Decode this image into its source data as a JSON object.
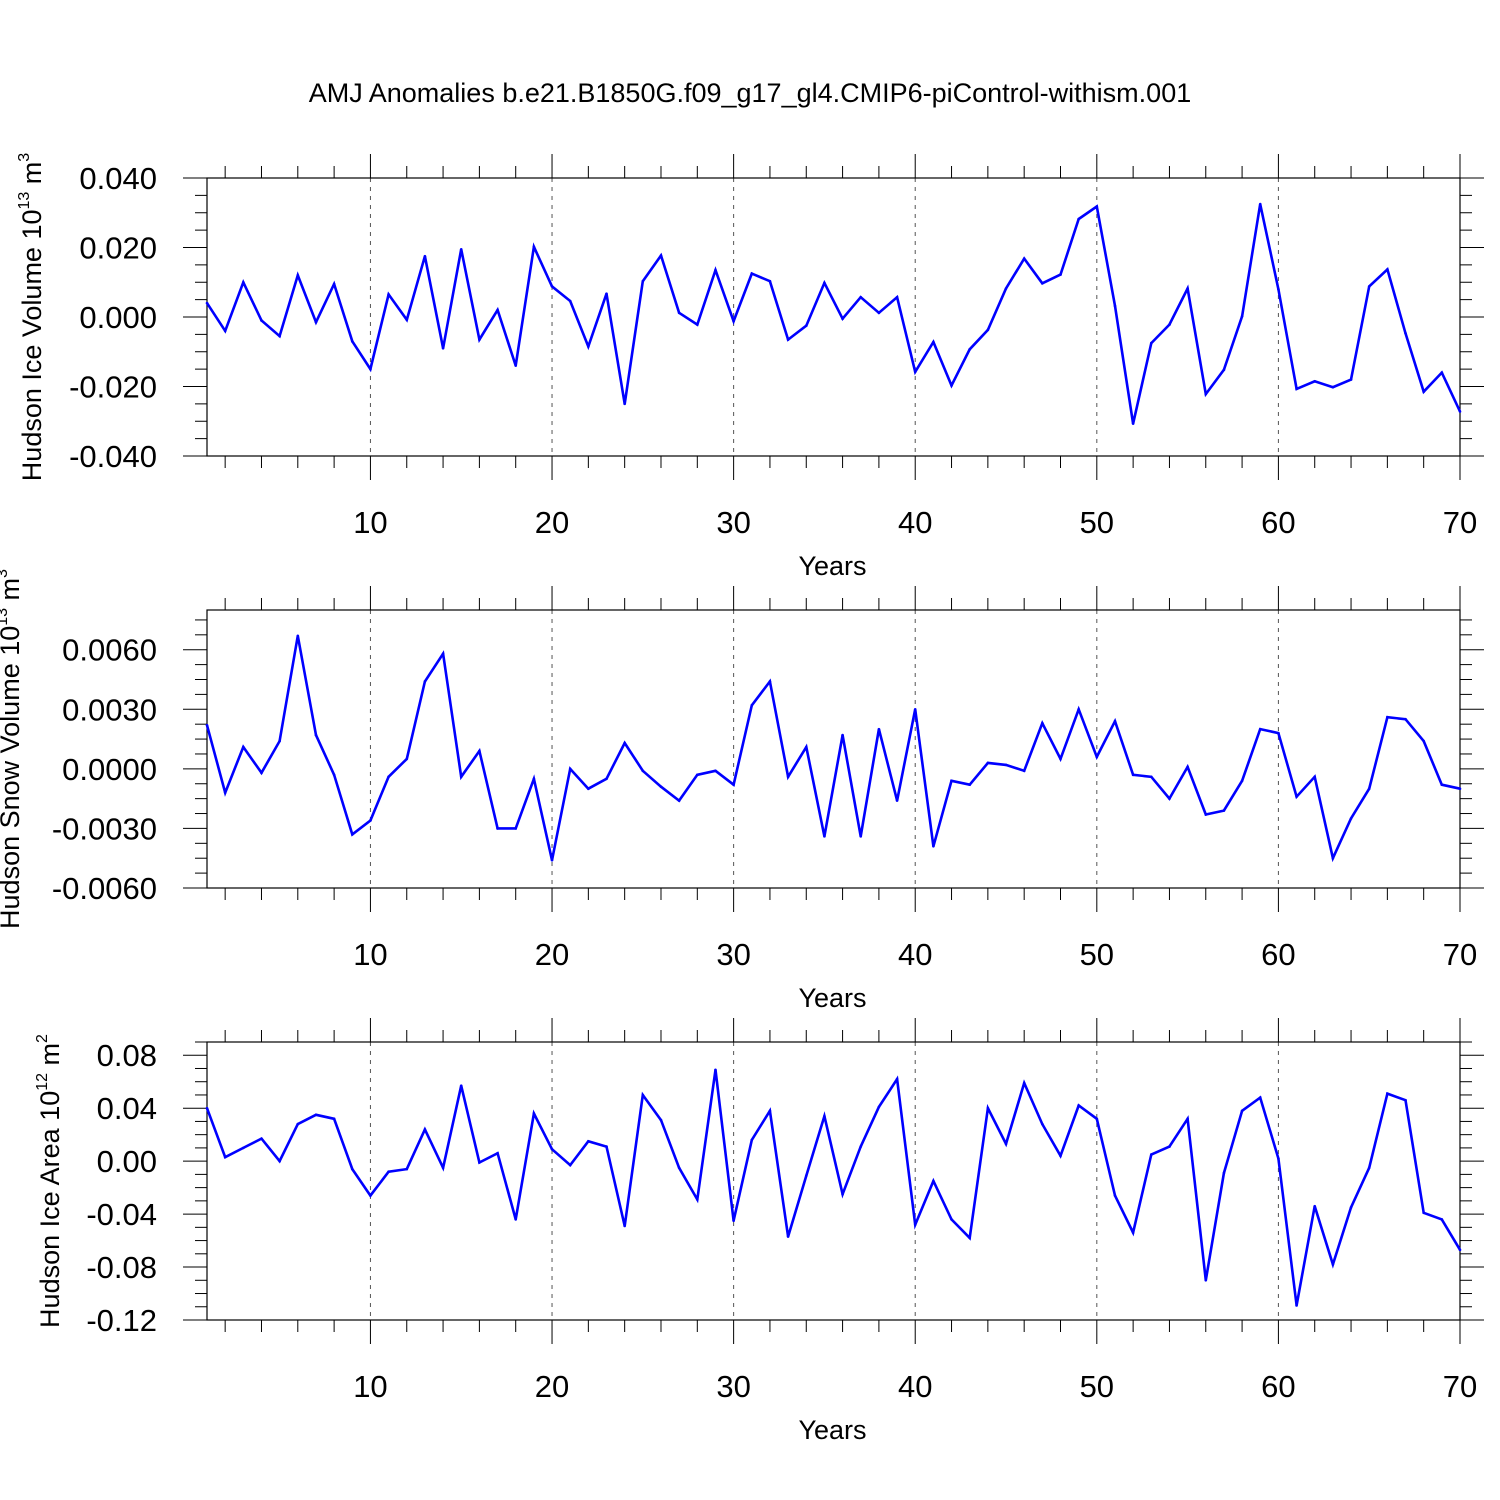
{
  "title": "AMJ Anomalies b.e21.B1850G.f09_g17_gl4.CMIP6-piControl-withism.001",
  "colors": {
    "series": "#0000ff",
    "axis": "#000000",
    "grid": "#555555"
  },
  "chart_data": [
    {
      "type": "line",
      "title": "",
      "xlabel": "Years",
      "ylabel": {
        "main": "Hudson Ice Volume 10",
        "exp": "13",
        "unit": " m",
        "unit_exp": "3"
      },
      "xlim": [
        1,
        70
      ],
      "ylim": [
        -0.04,
        0.04
      ],
      "xticks": [
        10,
        20,
        30,
        40,
        50,
        60,
        70
      ],
      "yticks": [
        -0.04,
        -0.02,
        0.0,
        0.02,
        0.04
      ],
      "ytick_labels": [
        "-0.040",
        "-0.020",
        "0.000",
        "0.020",
        "0.040"
      ],
      "grid": "vertical dashed",
      "x": [
        1,
        2,
        3,
        4,
        5,
        6,
        7,
        8,
        9,
        10,
        11,
        12,
        13,
        14,
        15,
        16,
        17,
        18,
        19,
        20,
        21,
        22,
        23,
        24,
        25,
        26,
        27,
        28,
        29,
        30,
        31,
        32,
        33,
        34,
        35,
        36,
        37,
        38,
        39,
        40,
        41,
        42,
        43,
        44,
        45,
        46,
        47,
        48,
        49,
        50,
        51,
        52,
        53,
        54,
        55,
        56,
        57,
        58,
        59,
        60,
        61,
        62,
        63,
        64,
        65,
        66,
        67,
        68,
        69,
        70
      ],
      "values": [
        0.004,
        -0.004,
        0.01,
        -0.001,
        -0.0055,
        0.012,
        -0.0015,
        0.0095,
        -0.007,
        -0.015,
        0.0065,
        -0.0008,
        0.0175,
        -0.009,
        0.0195,
        -0.0065,
        0.002,
        -0.014,
        0.0202,
        0.0088,
        0.0046,
        -0.0085,
        0.0067,
        -0.025,
        0.0103,
        0.0177,
        0.0012,
        -0.0022,
        0.0135,
        -0.0012,
        0.0125,
        0.0103,
        -0.0065,
        -0.0025,
        0.0098,
        -0.0005,
        0.0057,
        0.0012,
        0.0057,
        -0.0158,
        -0.0072,
        -0.0197,
        -0.0093,
        -0.0037,
        0.0082,
        0.0168,
        0.0097,
        0.0122,
        0.0282,
        0.0318,
        0.0032,
        -0.0307,
        -0.0075,
        -0.0022,
        0.0082,
        -0.0222,
        -0.0152,
        0.0002,
        0.0325,
        0.008,
        -0.0207,
        -0.0185,
        -0.0202,
        -0.018,
        0.0088,
        0.0137,
        -0.0047,
        -0.0215,
        -0.016,
        -0.0272
      ]
    },
    {
      "type": "line",
      "title": "",
      "xlabel": "Years",
      "ylabel": {
        "main": "Hudson Snow Volume 10",
        "exp": "13",
        "unit": " m",
        "unit_exp": "3"
      },
      "xlim": [
        1,
        70
      ],
      "ylim": [
        -0.006,
        0.008
      ],
      "xticks": [
        10,
        20,
        30,
        40,
        50,
        60,
        70
      ],
      "yticks": [
        -0.006,
        -0.003,
        0.0,
        0.003,
        0.006
      ],
      "ytick_labels": [
        "-0.0060",
        "-0.0030",
        "0.0000",
        "0.0030",
        "0.0060"
      ],
      "grid": "vertical dashed",
      "x": [
        1,
        2,
        3,
        4,
        5,
        6,
        7,
        8,
        9,
        10,
        11,
        12,
        13,
        14,
        15,
        16,
        17,
        18,
        19,
        20,
        21,
        22,
        23,
        24,
        25,
        26,
        27,
        28,
        29,
        30,
        31,
        32,
        33,
        34,
        35,
        36,
        37,
        38,
        39,
        40,
        41,
        42,
        43,
        44,
        45,
        46,
        47,
        48,
        49,
        50,
        51,
        52,
        53,
        54,
        55,
        56,
        57,
        58,
        59,
        60,
        61,
        62,
        63,
        64,
        65,
        66,
        67,
        68,
        69,
        70
      ],
      "values": [
        0.0022,
        -0.0012,
        0.0011,
        -0.0002,
        0.0014,
        0.0067,
        0.0017,
        -0.0003,
        -0.0033,
        -0.0026,
        -0.0004,
        0.0005,
        0.0044,
        0.0058,
        -0.0004,
        0.0009,
        -0.003,
        -0.003,
        -0.0005,
        -0.0046,
        0.0,
        -0.001,
        -0.0005,
        0.0013,
        -0.0001,
        -0.0009,
        -0.0016,
        -0.0003,
        -0.0001,
        -0.0008,
        0.0032,
        0.0044,
        -0.0004,
        0.0011,
        -0.0034,
        0.0017,
        -0.0034,
        0.002,
        -0.0016,
        0.003,
        -0.0039,
        -0.0006,
        -0.0008,
        0.0003,
        0.0002,
        -0.0001,
        0.0023,
        0.0005,
        0.003,
        0.0006,
        0.0024,
        -0.0003,
        -0.0004,
        -0.0015,
        0.0001,
        -0.0023,
        -0.0021,
        -0.0006,
        0.002,
        0.0018,
        -0.0014,
        -0.0004,
        -0.0045,
        -0.0025,
        -0.001,
        0.0026,
        0.0025,
        0.0014,
        -0.0008,
        -0.001
      ]
    },
    {
      "type": "line",
      "title": "",
      "xlabel": "Years",
      "ylabel": {
        "main": "Hudson Ice Area 10",
        "exp": "12",
        "unit": " m",
        "unit_exp": "2"
      },
      "xlim": [
        1,
        70
      ],
      "ylim": [
        -0.12,
        0.09
      ],
      "xticks": [
        10,
        20,
        30,
        40,
        50,
        60,
        70
      ],
      "yticks": [
        -0.12,
        -0.08,
        -0.04,
        0.0,
        0.04,
        0.08
      ],
      "ytick_labels": [
        "-0.12",
        "-0.08",
        "-0.04",
        "0.00",
        "0.04",
        "0.08"
      ],
      "grid": "vertical dashed",
      "x": [
        1,
        2,
        3,
        4,
        5,
        6,
        7,
        8,
        9,
        10,
        11,
        12,
        13,
        14,
        15,
        16,
        17,
        18,
        19,
        20,
        21,
        22,
        23,
        24,
        25,
        26,
        27,
        28,
        29,
        30,
        31,
        32,
        33,
        34,
        35,
        36,
        37,
        38,
        39,
        40,
        41,
        42,
        43,
        44,
        45,
        46,
        47,
        48,
        49,
        50,
        51,
        52,
        53,
        54,
        55,
        56,
        57,
        58,
        59,
        60,
        61,
        62,
        63,
        64,
        65,
        66,
        67,
        68,
        69,
        70
      ],
      "values": [
        0.04,
        0.003,
        0.01,
        0.017,
        0.0,
        0.028,
        0.035,
        0.032,
        -0.006,
        -0.026,
        -0.008,
        -0.006,
        0.024,
        -0.005,
        0.057,
        -0.001,
        0.006,
        -0.044,
        0.036,
        0.009,
        -0.003,
        0.015,
        0.011,
        -0.049,
        0.05,
        0.031,
        -0.005,
        -0.029,
        0.069,
        -0.045,
        0.016,
        0.038,
        -0.057,
        -0.011,
        0.034,
        -0.025,
        0.011,
        0.041,
        0.062,
        -0.048,
        -0.015,
        -0.044,
        -0.058,
        0.04,
        0.013,
        0.059,
        0.028,
        0.004,
        0.042,
        0.032,
        -0.026,
        -0.054,
        0.005,
        0.011,
        0.032,
        -0.09,
        -0.009,
        0.038,
        0.048,
        0.002,
        -0.109,
        -0.034,
        -0.078,
        -0.035,
        -0.005,
        0.051,
        0.046,
        -0.039,
        -0.044,
        -0.067
      ]
    }
  ]
}
